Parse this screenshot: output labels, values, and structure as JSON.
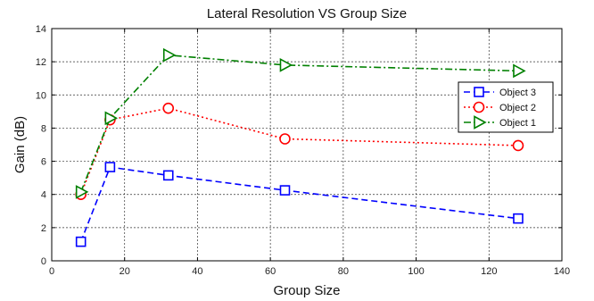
{
  "chart_data": {
    "type": "line",
    "title": "Lateral Resolution VS Group Size",
    "xlabel": "Group Size",
    "ylabel": "Gain (dB)",
    "xlim": [
      0,
      140
    ],
    "ylim": [
      0,
      14
    ],
    "xticks": [
      0,
      20,
      40,
      60,
      80,
      100,
      120,
      140
    ],
    "yticks": [
      0,
      2,
      4,
      6,
      8,
      10,
      12,
      14
    ],
    "grid": true,
    "legend_position": "right",
    "series": [
      {
        "name": "Object 3",
        "color": "#0000ff",
        "line_style": "dashed",
        "marker": "square",
        "x": [
          8,
          16,
          32,
          64,
          128
        ],
        "y": [
          1.15,
          5.65,
          5.15,
          4.25,
          2.55
        ]
      },
      {
        "name": "Object 2",
        "color": "#ff0000",
        "line_style": "dotted",
        "marker": "circle",
        "x": [
          8,
          16,
          32,
          64,
          128
        ],
        "y": [
          4.0,
          8.5,
          9.2,
          7.35,
          6.95
        ]
      },
      {
        "name": "Object 1",
        "color": "#008000",
        "line_style": "dashdot",
        "marker": "triangle-right",
        "x": [
          8,
          16,
          32,
          64,
          128
        ],
        "y": [
          4.15,
          8.6,
          12.4,
          11.8,
          11.45
        ]
      }
    ]
  }
}
